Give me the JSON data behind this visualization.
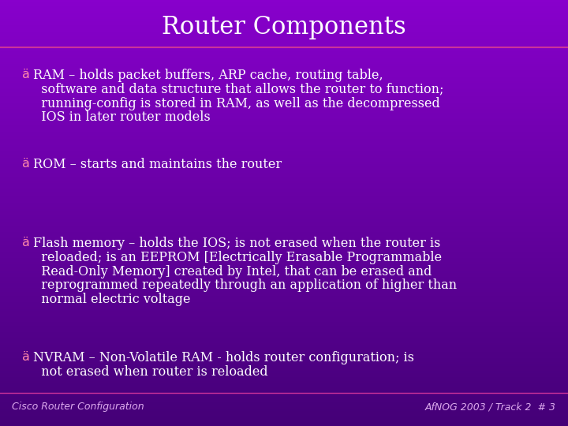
{
  "title": "Router Components",
  "title_fontsize": 22,
  "title_color": "#FFFFFF",
  "background_top": "#8800CC",
  "background_bottom": "#440077",
  "divider_color": "#CC3399",
  "text_color": "#FFFFFF",
  "footer_left": "Cisco Router Configuration",
  "footer_right": "AfNOG 2003 / Track 2  # 3",
  "footer_color": "#DDAAEE",
  "footer_fontsize": 9,
  "body_fontsize": 11.5,
  "bullet_color": "#FF88AA",
  "bullets": [
    {
      "key": "RAM",
      "lines": [
        "äRAM – holds packet buffers, ARP cache, routing table,",
        "  software and data structure that allows the router to function;",
        "  running-config is stored in RAM, as well as the decompressed",
        "  IOS in later router models"
      ]
    },
    {
      "key": "ROM",
      "lines": [
        "äROM – starts and maintains the router"
      ]
    },
    {
      "key": "Flash",
      "lines": [
        "äFlash memory – holds the IOS; is not erased when the router is",
        "  reloaded; is an EEPROM [Electrically Erasable Programmable",
        "  Read-Only Memory] created by Intel, that can be erased and",
        "  reprogrammed repeatedly through an application of higher than",
        "  normal electric voltage"
      ]
    },
    {
      "key": "NVRAM",
      "lines": [
        "äNVRAM – Non-Volatile RAM - holds router configuration; is",
        "  not erased when router is reloaded"
      ]
    }
  ]
}
